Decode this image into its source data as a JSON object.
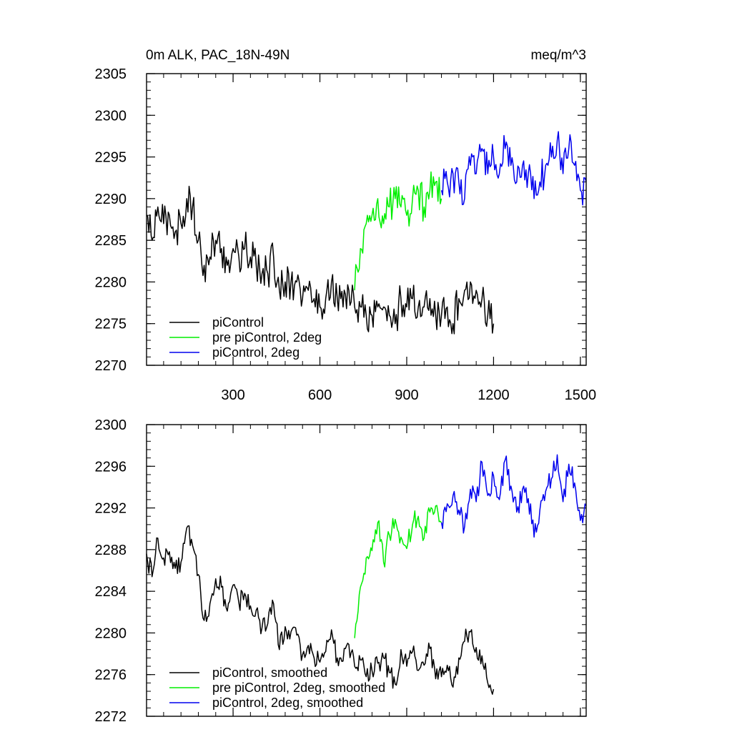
{
  "chart_data": [
    {
      "type": "line",
      "title_left": "0m ALK, PAC_18N-49N",
      "title_right": "meq/m^3",
      "xlim": [
        1,
        1520
      ],
      "ylim": [
        2270,
        2305
      ],
      "x_ticks": [
        300,
        600,
        900,
        1200,
        1500
      ],
      "x_tick_labels": [
        "300",
        "600",
        "900",
        "1200",
        "1500"
      ],
      "y_ticks": [
        2270,
        2275,
        2280,
        2285,
        2290,
        2295,
        2300,
        2305
      ],
      "y_tick_labels": [
        "2270",
        "2275",
        "2280",
        "2285",
        "2290",
        "2295",
        "2300",
        "2305"
      ],
      "legend_position": "bottom-left",
      "series": [
        {
          "name": "piControl",
          "color": "#000000",
          "x": [
            1,
            20,
            40,
            60,
            80,
            100,
            120,
            140,
            160,
            180,
            200,
            220,
            240,
            260,
            280,
            300,
            320,
            340,
            360,
            380,
            400,
            420,
            440,
            460,
            480,
            500,
            520,
            540,
            560,
            580,
            600,
            620,
            640,
            660,
            680,
            700,
            720,
            740,
            760,
            780,
            800,
            820,
            840,
            860,
            880,
            900,
            920,
            940,
            960,
            980,
            1000,
            1020,
            1040,
            1060,
            1080,
            1100,
            1120,
            1140,
            1160,
            1180,
            1200
          ],
          "y": [
            2288,
            2285,
            2289,
            2287,
            2288,
            2286,
            2287,
            2290,
            2289,
            2285,
            2282,
            2283,
            2285,
            2284,
            2282,
            2284,
            2283,
            2284,
            2283,
            2282,
            2281,
            2281,
            2283,
            2279,
            2280,
            2280,
            2280,
            2278,
            2279,
            2278,
            2277,
            2278,
            2280,
            2278,
            2277,
            2279,
            2277,
            2277,
            2276,
            2276,
            2277,
            2277,
            2276,
            2275,
            2278,
            2277,
            2278,
            2277,
            2277,
            2278,
            2276,
            2276,
            2277,
            2275,
            2278,
            2279,
            2280,
            2279,
            2278,
            2276,
            2275
          ]
        },
        {
          "name": "pre piControl, 2deg",
          "color": "#00ee00",
          "x": [
            720,
            740,
            760,
            780,
            800,
            820,
            840,
            860,
            880,
            900,
            920,
            940,
            960,
            980,
            1000,
            1020
          ],
          "y": [
            2279,
            2284,
            2287,
            2288,
            2290,
            2287,
            2289,
            2290,
            2289,
            2288,
            2290,
            2291,
            2289,
            2291,
            2292,
            2290
          ]
        },
        {
          "name": "piControl, 2deg",
          "color": "#0000ee",
          "x": [
            1020,
            1040,
            1060,
            1080,
            1100,
            1120,
            1140,
            1160,
            1180,
            1200,
            1220,
            1240,
            1260,
            1280,
            1300,
            1320,
            1340,
            1360,
            1380,
            1400,
            1420,
            1440,
            1460,
            1480,
            1500,
            1520
          ],
          "y": [
            2291,
            2292,
            2293,
            2292,
            2290,
            2294,
            2293,
            2296,
            2293,
            2295,
            2293,
            2296,
            2294,
            2292,
            2294,
            2293,
            2290,
            2292,
            2294,
            2295,
            2297,
            2293,
            2296,
            2294,
            2291,
            2292
          ]
        }
      ]
    },
    {
      "type": "line",
      "xlim": [
        1,
        1520
      ],
      "ylim": [
        2272,
        2300
      ],
      "x_ticks": [
        300,
        600,
        900,
        1200,
        1500
      ],
      "y_ticks": [
        2272,
        2276,
        2280,
        2284,
        2288,
        2292,
        2296,
        2300
      ],
      "y_tick_labels": [
        "2272",
        "2276",
        "2280",
        "2284",
        "2288",
        "2292",
        "2296",
        "2300"
      ],
      "legend_position": "bottom-left",
      "series": [
        {
          "name": "piControl, smoothed",
          "color": "#000000",
          "x": [
            1,
            20,
            40,
            60,
            80,
            100,
            120,
            140,
            160,
            180,
            200,
            220,
            240,
            260,
            280,
            300,
            320,
            340,
            360,
            380,
            400,
            420,
            440,
            460,
            480,
            500,
            520,
            540,
            560,
            580,
            600,
            620,
            640,
            660,
            680,
            700,
            720,
            740,
            760,
            780,
            800,
            820,
            840,
            860,
            880,
            900,
            920,
            940,
            960,
            980,
            1000,
            1020,
            1040,
            1060,
            1080,
            1100,
            1120,
            1140,
            1160,
            1180,
            1200
          ],
          "y": [
            2287.6,
            2285.4,
            2289.1,
            2287.2,
            2287.8,
            2286.2,
            2286.8,
            2290.1,
            2288.4,
            2285.6,
            2281.2,
            2282.8,
            2285.2,
            2284.4,
            2282.1,
            2284.6,
            2282.9,
            2283.8,
            2282.6,
            2282.2,
            2280.5,
            2280.9,
            2282.8,
            2278.4,
            2280.6,
            2280.1,
            2279.8,
            2277.9,
            2278.8,
            2277.6,
            2277.2,
            2278.2,
            2280.3,
            2277.6,
            2277.3,
            2278.9,
            2276.8,
            2277.4,
            2275.8,
            2276.4,
            2277.1,
            2277.6,
            2276.2,
            2275.1,
            2278.4,
            2276.8,
            2278.2,
            2276.4,
            2276.9,
            2278.5,
            2275.6,
            2275.8,
            2276.9,
            2274.8,
            2277.6,
            2279.2,
            2280.1,
            2278.6,
            2277.8,
            2275.2,
            2274.6
          ]
        },
        {
          "name": "pre piControl, 2deg, smoothed",
          "color": "#00ee00",
          "x": [
            720,
            740,
            760,
            780,
            800,
            820,
            840,
            860,
            880,
            900,
            920,
            940,
            960,
            980,
            1000,
            1020
          ],
          "y": [
            2279.5,
            2284.4,
            2287.2,
            2287.9,
            2290.6,
            2286.8,
            2289.4,
            2290.9,
            2289.2,
            2288.1,
            2290.4,
            2291.2,
            2289.1,
            2291.6,
            2292.2,
            2290.6
          ]
        },
        {
          "name": "piControl, 2deg, smoothed",
          "color": "#0000ee",
          "x": [
            1020,
            1040,
            1060,
            1080,
            1100,
            1120,
            1140,
            1160,
            1180,
            1200,
            1220,
            1240,
            1260,
            1280,
            1300,
            1320,
            1340,
            1360,
            1380,
            1400,
            1420,
            1440,
            1460,
            1480,
            1500,
            1520
          ],
          "y": [
            2290.6,
            2292.4,
            2293.2,
            2291.8,
            2290.2,
            2293.8,
            2292.6,
            2296.4,
            2293.2,
            2295.1,
            2292.8,
            2296.6,
            2294.1,
            2291.6,
            2293.8,
            2292.9,
            2289.2,
            2291.8,
            2293.6,
            2294.8,
            2297.1,
            2292.6,
            2296.2,
            2294.4,
            2290.8,
            2292.2
          ]
        }
      ]
    }
  ]
}
